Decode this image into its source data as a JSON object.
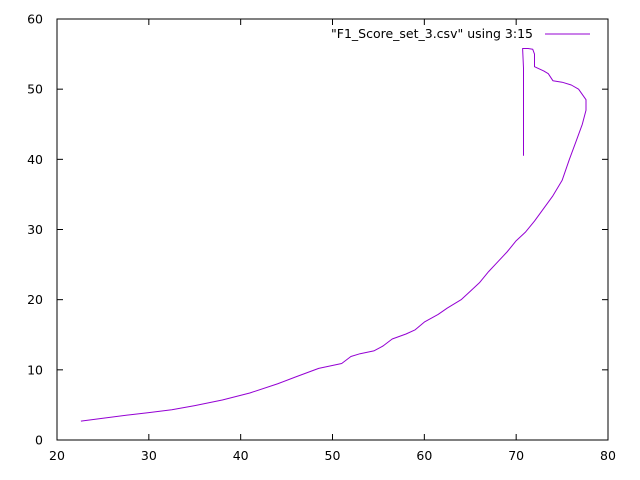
{
  "chart_data": {
    "type": "line",
    "title": "",
    "xlabel": "",
    "ylabel": "",
    "xlim": [
      20,
      80
    ],
    "ylim": [
      0,
      60
    ],
    "x_ticks": [
      "20",
      "30",
      "40",
      "50",
      "60",
      "70",
      "80"
    ],
    "y_ticks": [
      "0",
      "10",
      "20",
      "30",
      "40",
      "50",
      "60"
    ],
    "grid": false,
    "legend_position": "top-right",
    "series": [
      {
        "name": "\"F1_Score_set_3.csv\" using 3:15",
        "color": "#9400d3",
        "points": [
          [
            22.6,
            2.7
          ],
          [
            25.0,
            3.1
          ],
          [
            28.0,
            3.6
          ],
          [
            30.0,
            3.9
          ],
          [
            32.5,
            4.3
          ],
          [
            35.0,
            4.9
          ],
          [
            38.0,
            5.7
          ],
          [
            41.0,
            6.7
          ],
          [
            44.0,
            8.0
          ],
          [
            46.0,
            9.0
          ],
          [
            48.5,
            10.2
          ],
          [
            51.0,
            10.9
          ],
          [
            52.0,
            11.9
          ],
          [
            53.0,
            12.3
          ],
          [
            54.5,
            12.7
          ],
          [
            55.5,
            13.4
          ],
          [
            56.5,
            14.4
          ],
          [
            58.0,
            15.1
          ],
          [
            59.0,
            15.7
          ],
          [
            60.0,
            16.8
          ],
          [
            61.5,
            17.9
          ],
          [
            62.5,
            18.8
          ],
          [
            64.0,
            20.0
          ],
          [
            65.0,
            21.2
          ],
          [
            66.0,
            22.4
          ],
          [
            67.0,
            24.0
          ],
          [
            68.0,
            25.4
          ],
          [
            69.0,
            26.8
          ],
          [
            70.0,
            28.4
          ],
          [
            71.0,
            29.6
          ],
          [
            72.0,
            31.2
          ],
          [
            73.0,
            33.0
          ],
          [
            74.0,
            34.8
          ],
          [
            75.0,
            37.0
          ],
          [
            75.8,
            40.0
          ],
          [
            76.5,
            42.5
          ],
          [
            77.2,
            45.0
          ],
          [
            77.6,
            47.0
          ],
          [
            77.6,
            48.5
          ],
          [
            76.8,
            50.0
          ],
          [
            76.0,
            50.6
          ],
          [
            75.0,
            51.0
          ],
          [
            74.0,
            51.2
          ],
          [
            73.5,
            52.2
          ],
          [
            73.0,
            52.6
          ],
          [
            72.5,
            52.9
          ],
          [
            72.0,
            53.2
          ],
          [
            72.0,
            55.0
          ],
          [
            71.8,
            55.7
          ],
          [
            71.3,
            55.8
          ],
          [
            70.7,
            55.8
          ],
          [
            70.8,
            53.0
          ],
          [
            70.8,
            40.5
          ]
        ]
      }
    ]
  }
}
